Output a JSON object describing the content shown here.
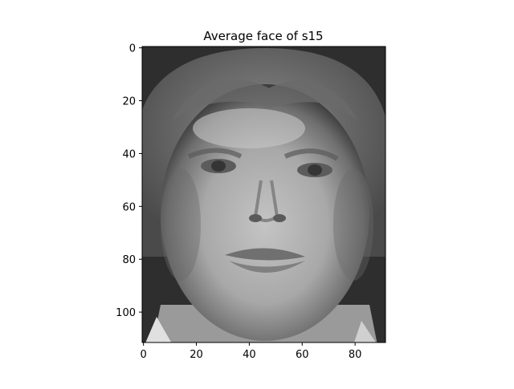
{
  "chart_data": {
    "type": "heatmap",
    "title": "Average face of s15",
    "xlabel": "",
    "ylabel": "",
    "image_width": 92,
    "image_height": 112,
    "xlim": [
      -0.5,
      91.5
    ],
    "ylim": [
      111.5,
      -0.5
    ],
    "xticks": [
      0,
      20,
      40,
      60,
      80
    ],
    "yticks": [
      0,
      20,
      40,
      60,
      80,
      100
    ],
    "xtick_labels": [
      "0",
      "20",
      "40",
      "60",
      "80"
    ],
    "ytick_labels": [
      "0",
      "20",
      "40",
      "60",
      "80",
      "100"
    ],
    "colormap": "gray",
    "grid": false
  }
}
